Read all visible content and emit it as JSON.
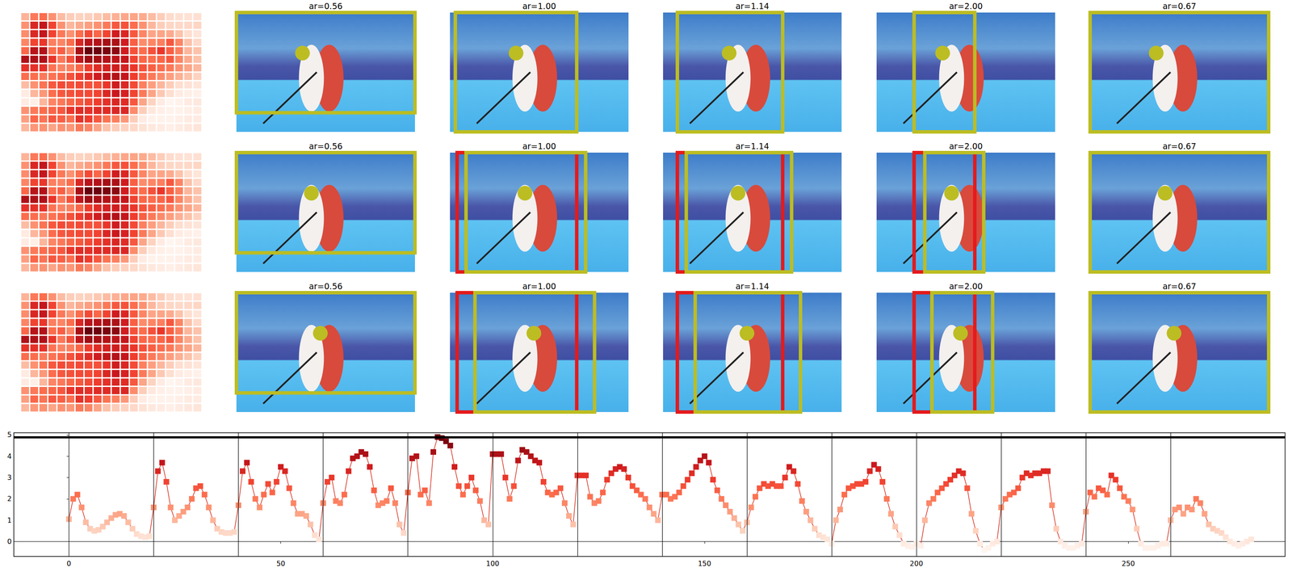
{
  "panels": {
    "rows": [
      [
        "ar=0.56",
        "ar=1.00",
        "ar=1.14",
        "ar=2.00",
        "ar=0.67"
      ],
      [
        "ar=0.56",
        "ar=1.00",
        "ar=1.14",
        "ar=2.00",
        "ar=0.67"
      ],
      [
        "ar=0.56",
        "ar=1.00",
        "ar=1.14",
        "ar=2.00",
        "ar=0.67"
      ]
    ]
  },
  "chart_data": {
    "type": "line",
    "marker": "square",
    "color": "#d7301f",
    "grid": false,
    "xlim": [
      -13,
      287
    ],
    "xticks": [
      0,
      50,
      100,
      150,
      200,
      250
    ],
    "ylim": [
      -0.7,
      5.1
    ],
    "yticks": [
      0,
      1,
      2,
      3,
      4,
      5
    ],
    "vlines": [
      0,
      20,
      40,
      60,
      80,
      100,
      120,
      140,
      160,
      180,
      200,
      220,
      240,
      260
    ],
    "reference_line": 4.9,
    "x": [
      0,
      1,
      2,
      3,
      4,
      5,
      6,
      7,
      8,
      9,
      10,
      11,
      12,
      13,
      14,
      15,
      16,
      17,
      18,
      19,
      20,
      21,
      22,
      23,
      24,
      25,
      26,
      27,
      28,
      29,
      30,
      31,
      32,
      33,
      34,
      35,
      36,
      37,
      38,
      39,
      40,
      41,
      42,
      43,
      44,
      45,
      46,
      47,
      48,
      49,
      50,
      51,
      52,
      53,
      54,
      55,
      56,
      57,
      58,
      59,
      60,
      61,
      62,
      63,
      64,
      65,
      66,
      67,
      68,
      69,
      70,
      71,
      72,
      73,
      74,
      75,
      76,
      77,
      78,
      79,
      80,
      81,
      82,
      83,
      84,
      85,
      86,
      87,
      88,
      89,
      90,
      91,
      92,
      93,
      94,
      95,
      96,
      97,
      98,
      99,
      100,
      101,
      102,
      103,
      104,
      105,
      106,
      107,
      108,
      109,
      110,
      111,
      112,
      113,
      114,
      115,
      116,
      117,
      118,
      119,
      120,
      121,
      122,
      123,
      124,
      125,
      126,
      127,
      128,
      129,
      130,
      131,
      132,
      133,
      134,
      135,
      136,
      137,
      138,
      139,
      140,
      141,
      142,
      143,
      144,
      145,
      146,
      147,
      148,
      149,
      150,
      151,
      152,
      153,
      154,
      155,
      156,
      157,
      158,
      159,
      160,
      161,
      162,
      163,
      164,
      165,
      166,
      167,
      168,
      169,
      170,
      171,
      172,
      173,
      174,
      175,
      176,
      177,
      178,
      179,
      180,
      181,
      182,
      183,
      184,
      185,
      186,
      187,
      188,
      189,
      190,
      191,
      192,
      193,
      194,
      195,
      196,
      197,
      198,
      199,
      200,
      201,
      202,
      203,
      204,
      205,
      206,
      207,
      208,
      209,
      210,
      211,
      212,
      213,
      214,
      215,
      216,
      217,
      218,
      219,
      220,
      221,
      222,
      223,
      224,
      225,
      226,
      227,
      228,
      229,
      230,
      231,
      232,
      233,
      234,
      235,
      236,
      237,
      238,
      239,
      240,
      241,
      242,
      243,
      244,
      245,
      246,
      247,
      248,
      249,
      250,
      251,
      252,
      253,
      254,
      255,
      256,
      257,
      258,
      259,
      260,
      261,
      262,
      263,
      264,
      265,
      266,
      267,
      268,
      269,
      270,
      271,
      272,
      273,
      274,
      275,
      276,
      277,
      278,
      279
    ],
    "values": [
      1.05,
      2.0,
      2.2,
      1.6,
      0.9,
      0.6,
      0.5,
      0.55,
      0.7,
      0.9,
      1.1,
      1.25,
      1.3,
      1.2,
      0.9,
      0.6,
      0.35,
      0.25,
      0.2,
      0.25,
      1.6,
      3.3,
      3.7,
      2.8,
      1.6,
      1.0,
      1.2,
      1.4,
      1.6,
      2.0,
      2.5,
      2.6,
      2.2,
      1.6,
      1.0,
      0.6,
      0.45,
      0.4,
      0.4,
      0.45,
      1.7,
      3.3,
      3.7,
      2.8,
      2.0,
      1.6,
      2.2,
      2.7,
      2.3,
      2.8,
      3.5,
      3.3,
      2.5,
      1.8,
      1.3,
      1.3,
      1.2,
      0.8,
      0.3,
      0.1,
      1.8,
      2.8,
      3.0,
      1.9,
      1.8,
      2.2,
      3.3,
      3.9,
      4.0,
      4.2,
      4.1,
      3.5,
      2.4,
      1.7,
      1.8,
      1.9,
      2.5,
      1.8,
      0.8,
      0.4,
      2.3,
      3.9,
      4.0,
      2.2,
      2.4,
      1.8,
      4.2,
      4.9,
      4.85,
      4.7,
      4.5,
      3.5,
      2.6,
      2.2,
      2.6,
      3.0,
      2.4,
      1.9,
      1.0,
      0.8,
      4.1,
      4.1,
      4.1,
      3.0,
      2.0,
      2.6,
      3.8,
      4.3,
      4.2,
      4.0,
      3.8,
      3.7,
      2.8,
      2.3,
      2.2,
      2.3,
      2.5,
      1.8,
      1.2,
      0.8,
      3.1,
      3.1,
      3.1,
      2.1,
      1.8,
      1.9,
      2.3,
      2.9,
      3.2,
      3.4,
      3.5,
      3.4,
      3.0,
      2.6,
      2.4,
      2.2,
      2.0,
      1.6,
      1.3,
      1.0,
      2.2,
      2.2,
      2.0,
      2.1,
      2.3,
      2.6,
      2.9,
      3.2,
      3.5,
      3.8,
      4.0,
      3.7,
      2.9,
      2.4,
      2.0,
      1.7,
      1.4,
      1.1,
      0.8,
      0.5,
      0.9,
      1.6,
      2.1,
      2.5,
      2.7,
      2.6,
      2.7,
      2.6,
      2.6,
      3.0,
      3.5,
      3.3,
      2.7,
      1.9,
      1.4,
      1.0,
      0.6,
      0.3,
      0.2,
      0.1,
      -0.1,
      1.0,
      1.5,
      2.2,
      2.5,
      2.6,
      2.7,
      2.7,
      2.8,
      3.3,
      3.6,
      3.4,
      2.8,
      2.0,
      1.3,
      0.7,
      0.3,
      -0.1,
      -0.2,
      -0.25,
      -0.1,
      -0.2,
      1.0,
      1.8,
      2.0,
      2.3,
      2.5,
      2.7,
      2.9,
      3.1,
      3.3,
      3.2,
      2.5,
      1.3,
      0.5,
      -0.1,
      -0.4,
      -0.3,
      -0.1,
      0.0,
      1.6,
      2.0,
      2.2,
      2.3,
      2.5,
      3.0,
      3.2,
      3.1,
      3.2,
      3.2,
      3.3,
      3.3,
      1.7,
      0.6,
      0.0,
      -0.2,
      -0.3,
      -0.3,
      -0.2,
      -0.1,
      1.4,
      2.3,
      2.1,
      2.5,
      2.4,
      2.2,
      3.1,
      2.9,
      2.5,
      2.1,
      1.9,
      1.5,
      0.6,
      -0.1,
      -0.3,
      -0.3,
      -0.3,
      -0.2,
      -0.1,
      -0.1,
      1.0,
      1.5,
      1.6,
      1.3,
      1.6,
      1.5,
      2.0,
      1.8,
      1.3,
      0.8,
      0.6,
      0.5,
      0.4,
      0.2,
      0.0,
      -0.1,
      -0.2,
      -0.1,
      0.0,
      0.1
    ]
  }
}
